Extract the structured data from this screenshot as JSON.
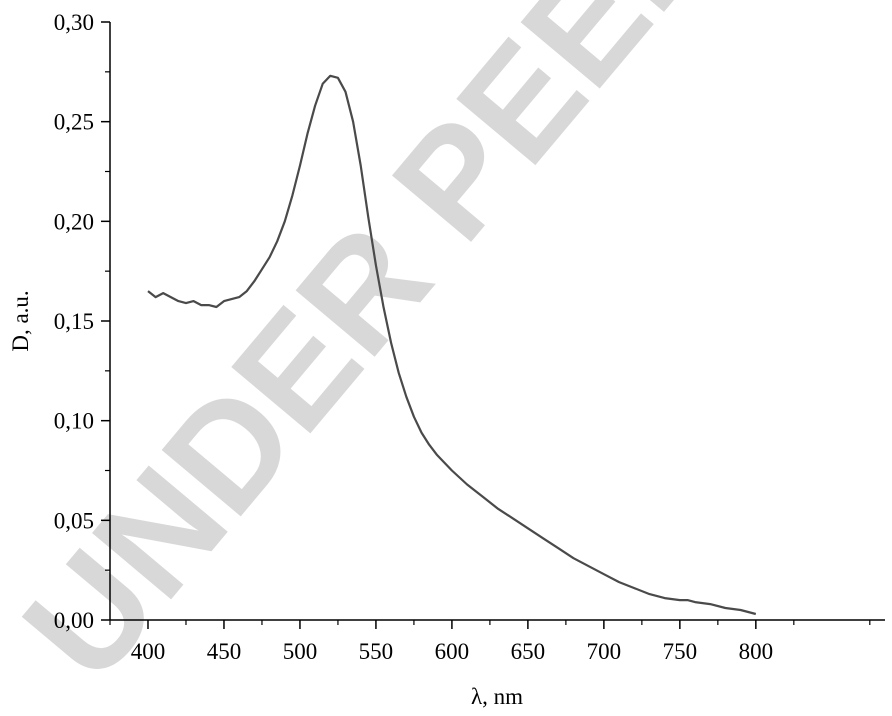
{
  "watermark": {
    "text": "UNDER PEER R",
    "color": "#d8d8d8"
  },
  "chart_data": {
    "type": "line",
    "xlabel": "λ, nm",
    "ylabel": "D, a.u.",
    "xlim": [
      375,
      885
    ],
    "ylim": [
      0,
      0.3
    ],
    "xticks": [
      400,
      450,
      500,
      550,
      600,
      650,
      700,
      750,
      800
    ],
    "xtick_labels": [
      "400",
      "450",
      "500",
      "550",
      "600",
      "650",
      "700",
      "750",
      "800"
    ],
    "yticks": [
      0,
      0.05,
      0.1,
      0.15,
      0.2,
      0.25,
      0.3
    ],
    "ytick_labels": [
      "0,00",
      "0,05",
      "0,10",
      "0,15",
      "0,20",
      "0,25",
      "0,30"
    ],
    "grid": false,
    "line_color": "#4a4a4a",
    "series": [
      {
        "x": [
          400,
          405,
          410,
          415,
          420,
          425,
          430,
          435,
          440,
          445,
          450,
          455,
          460,
          465,
          470,
          475,
          480,
          485,
          490,
          495,
          500,
          505,
          510,
          515,
          520,
          525,
          530,
          535,
          540,
          545,
          550,
          555,
          560,
          565,
          570,
          575,
          580,
          585,
          590,
          600,
          610,
          620,
          630,
          640,
          650,
          660,
          670,
          680,
          690,
          700,
          710,
          720,
          730,
          740,
          750,
          755,
          760,
          770,
          780,
          790,
          800
        ],
        "y": [
          0.165,
          0.162,
          0.164,
          0.162,
          0.16,
          0.159,
          0.16,
          0.158,
          0.158,
          0.157,
          0.16,
          0.161,
          0.162,
          0.165,
          0.17,
          0.176,
          0.182,
          0.19,
          0.2,
          0.213,
          0.228,
          0.244,
          0.258,
          0.269,
          0.273,
          0.272,
          0.265,
          0.25,
          0.228,
          0.202,
          0.178,
          0.157,
          0.139,
          0.124,
          0.112,
          0.102,
          0.094,
          0.088,
          0.083,
          0.075,
          0.068,
          0.062,
          0.056,
          0.051,
          0.046,
          0.041,
          0.036,
          0.031,
          0.027,
          0.023,
          0.019,
          0.016,
          0.013,
          0.011,
          0.01,
          0.01,
          0.009,
          0.008,
          0.006,
          0.005,
          0.003
        ]
      }
    ]
  }
}
